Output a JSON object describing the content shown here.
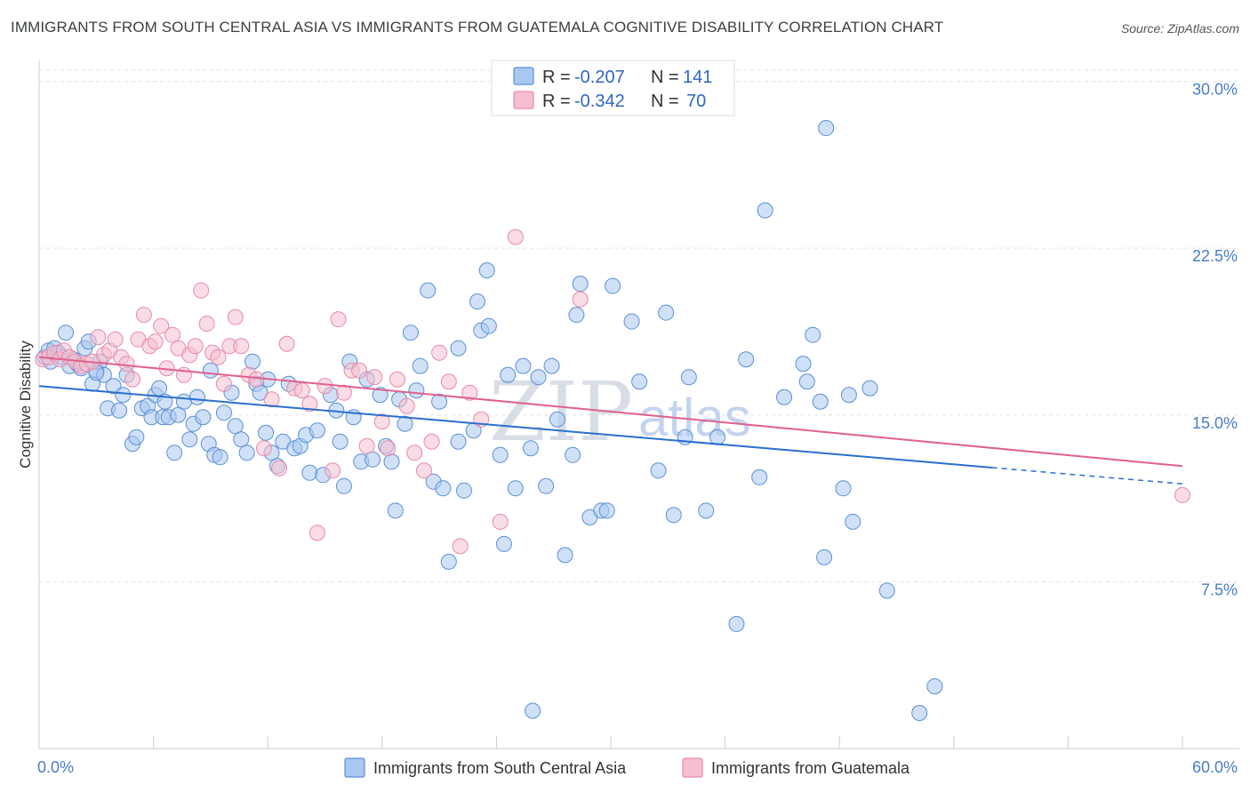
{
  "title": "IMMIGRANTS FROM SOUTH CENTRAL ASIA VS IMMIGRANTS FROM GUATEMALA COGNITIVE DISABILITY CORRELATION CHART",
  "source": "Source: ZipAtlas.com",
  "watermark": {
    "zip": "ZIP",
    "atlas": "atlas"
  },
  "colors": {
    "blue_fill": "#a9c8f0",
    "blue_stroke": "#5b8fd6",
    "blue_line": "#2a6fcf",
    "pink_fill": "#f6bfd0",
    "pink_stroke": "#e68aaa",
    "pink_line": "#e0608e",
    "axis_text": "#4a7cc9",
    "grid": "#e3e3e3"
  },
  "legend": {
    "r_label": "R =",
    "n_label": "N =",
    "series": [
      {
        "r": "-0.207",
        "n": "141"
      },
      {
        "r": "-0.342",
        "n": "70"
      }
    ]
  },
  "chart_data": {
    "type": "scatter",
    "title": "IMMIGRANTS FROM SOUTH CENTRAL ASIA VS IMMIGRANTS FROM GUATEMALA COGNITIVE DISABILITY CORRELATION CHART",
    "xlabel": "",
    "ylabel": "Cognitive Disability",
    "xlim": [
      0,
      60
    ],
    "ylim": [
      0,
      30.5
    ],
    "x_tick_labels": [
      "0.0%",
      "60.0%"
    ],
    "y_ticks": [
      7.5,
      15.0,
      22.5,
      30.0
    ],
    "y_tick_labels": [
      "7.5%",
      "15.0%",
      "22.5%",
      "30.0%"
    ],
    "series": [
      {
        "name": "Immigrants from South Central Asia",
        "r": -0.207,
        "n": 141,
        "trend": {
          "x0": 0,
          "y0": 16.3,
          "x1": 60,
          "y1": 11.9,
          "solid_until": 50
        },
        "points": [
          [
            0.3,
            17.6
          ],
          [
            0.5,
            17.9
          ],
          [
            0.6,
            17.4
          ],
          [
            0.8,
            18.0
          ],
          [
            1.0,
            17.8
          ],
          [
            1.2,
            17.6
          ],
          [
            1.4,
            18.7
          ],
          [
            1.6,
            17.2
          ],
          [
            1.8,
            17.5
          ],
          [
            2.0,
            17.3
          ],
          [
            2.2,
            17.1
          ],
          [
            2.4,
            18.0
          ],
          [
            2.6,
            18.3
          ],
          [
            2.8,
            16.4
          ],
          [
            3.0,
            17.0
          ],
          [
            3.2,
            17.4
          ],
          [
            3.4,
            16.8
          ],
          [
            3.6,
            15.3
          ],
          [
            3.9,
            16.3
          ],
          [
            4.2,
            15.2
          ],
          [
            4.4,
            15.9
          ],
          [
            4.6,
            16.8
          ],
          [
            4.9,
            13.7
          ],
          [
            5.1,
            14.0
          ],
          [
            5.4,
            15.3
          ],
          [
            5.7,
            15.4
          ],
          [
            5.9,
            14.9
          ],
          [
            6.1,
            15.9
          ],
          [
            6.3,
            16.2
          ],
          [
            6.5,
            14.9
          ],
          [
            6.8,
            14.9
          ],
          [
            7.1,
            13.3
          ],
          [
            7.3,
            15.0
          ],
          [
            7.6,
            15.6
          ],
          [
            7.9,
            13.9
          ],
          [
            8.1,
            14.6
          ],
          [
            8.3,
            15.8
          ],
          [
            8.6,
            14.9
          ],
          [
            8.9,
            13.7
          ],
          [
            9.2,
            13.2
          ],
          [
            9.5,
            13.1
          ],
          [
            9.7,
            15.1
          ],
          [
            10.1,
            16.0
          ],
          [
            10.3,
            14.5
          ],
          [
            10.6,
            13.9
          ],
          [
            10.9,
            13.3
          ],
          [
            11.2,
            17.4
          ],
          [
            11.4,
            16.4
          ],
          [
            11.6,
            16.0
          ],
          [
            11.9,
            14.2
          ],
          [
            12.2,
            13.3
          ],
          [
            12.5,
            12.7
          ],
          [
            12.8,
            13.8
          ],
          [
            13.1,
            16.4
          ],
          [
            13.4,
            13.5
          ],
          [
            13.7,
            13.6
          ],
          [
            14.0,
            14.1
          ],
          [
            14.2,
            12.4
          ],
          [
            14.6,
            14.3
          ],
          [
            14.9,
            12.3
          ],
          [
            15.3,
            15.9
          ],
          [
            15.6,
            15.2
          ],
          [
            15.8,
            13.8
          ],
          [
            16.0,
            11.8
          ],
          [
            16.3,
            17.4
          ],
          [
            16.5,
            14.9
          ],
          [
            16.9,
            12.9
          ],
          [
            17.2,
            16.6
          ],
          [
            17.5,
            13.0
          ],
          [
            17.9,
            15.9
          ],
          [
            18.2,
            13.6
          ],
          [
            18.5,
            12.9
          ],
          [
            18.7,
            10.7
          ],
          [
            18.9,
            15.7
          ],
          [
            19.2,
            14.6
          ],
          [
            19.5,
            18.7
          ],
          [
            19.8,
            16.1
          ],
          [
            20.0,
            17.2
          ],
          [
            20.4,
            20.6
          ],
          [
            20.7,
            12.0
          ],
          [
            21.0,
            15.6
          ],
          [
            21.2,
            11.7
          ],
          [
            21.5,
            8.4
          ],
          [
            22.0,
            13.8
          ],
          [
            22.3,
            11.6
          ],
          [
            22.8,
            14.3
          ],
          [
            23.0,
            20.1
          ],
          [
            23.2,
            18.8
          ],
          [
            23.5,
            21.5
          ],
          [
            23.6,
            19.0
          ],
          [
            24.2,
            13.2
          ],
          [
            24.4,
            9.2
          ],
          [
            24.6,
            16.8
          ],
          [
            25.0,
            11.7
          ],
          [
            25.4,
            17.2
          ],
          [
            25.8,
            13.5
          ],
          [
            26.2,
            16.7
          ],
          [
            26.6,
            11.8
          ],
          [
            26.9,
            17.2
          ],
          [
            27.2,
            14.8
          ],
          [
            27.6,
            8.7
          ],
          [
            28.0,
            13.2
          ],
          [
            28.2,
            19.5
          ],
          [
            28.4,
            20.9
          ],
          [
            28.9,
            10.4
          ],
          [
            29.5,
            10.7
          ],
          [
            29.8,
            10.7
          ],
          [
            30.1,
            20.8
          ],
          [
            31.1,
            19.2
          ],
          [
            31.5,
            16.5
          ],
          [
            32.5,
            12.5
          ],
          [
            32.9,
            19.6
          ],
          [
            33.3,
            10.5
          ],
          [
            33.9,
            14.0
          ],
          [
            34.1,
            16.7
          ],
          [
            35.6,
            14.0
          ],
          [
            36.6,
            5.6
          ],
          [
            37.1,
            17.5
          ],
          [
            37.8,
            12.2
          ],
          [
            38.1,
            24.2
          ],
          [
            39.1,
            15.8
          ],
          [
            40.1,
            17.3
          ],
          [
            40.3,
            16.5
          ],
          [
            40.6,
            18.6
          ],
          [
            41.0,
            15.6
          ],
          [
            41.2,
            8.6
          ],
          [
            41.3,
            27.9
          ],
          [
            42.2,
            11.7
          ],
          [
            42.5,
            15.9
          ],
          [
            42.7,
            10.2
          ],
          [
            43.6,
            16.2
          ],
          [
            44.5,
            7.1
          ],
          [
            46.2,
            1.6
          ],
          [
            47.0,
            2.8
          ],
          [
            25.9,
            1.7
          ],
          [
            35.0,
            10.7
          ],
          [
            22.0,
            18.0
          ],
          [
            12.0,
            16.6
          ],
          [
            9.0,
            17.0
          ],
          [
            6.6,
            15.6
          ],
          [
            3.0,
            16.9
          ]
        ]
      },
      {
        "name": "Immigrants from Guatemala",
        "r": -0.342,
        "n": 70,
        "trend": {
          "x0": 0,
          "y0": 17.6,
          "x1": 60,
          "y1": 12.7
        },
        "points": [
          [
            0.2,
            17.5
          ],
          [
            0.5,
            17.6
          ],
          [
            0.8,
            17.8
          ],
          [
            1.1,
            17.5
          ],
          [
            1.3,
            17.9
          ],
          [
            1.6,
            17.6
          ],
          [
            1.9,
            17.4
          ],
          [
            2.2,
            17.2
          ],
          [
            2.5,
            17.3
          ],
          [
            2.8,
            17.4
          ],
          [
            3.1,
            18.5
          ],
          [
            3.4,
            17.7
          ],
          [
            3.7,
            17.9
          ],
          [
            4.0,
            18.4
          ],
          [
            4.3,
            17.6
          ],
          [
            4.6,
            17.3
          ],
          [
            4.9,
            16.6
          ],
          [
            5.2,
            18.4
          ],
          [
            5.5,
            19.5
          ],
          [
            5.8,
            18.1
          ],
          [
            6.1,
            18.3
          ],
          [
            6.4,
            19.0
          ],
          [
            6.7,
            17.1
          ],
          [
            7.0,
            18.6
          ],
          [
            7.3,
            18.0
          ],
          [
            7.6,
            16.8
          ],
          [
            7.9,
            17.7
          ],
          [
            8.2,
            18.1
          ],
          [
            8.5,
            20.6
          ],
          [
            8.8,
            19.1
          ],
          [
            9.1,
            17.8
          ],
          [
            9.4,
            17.6
          ],
          [
            9.7,
            16.4
          ],
          [
            10.0,
            18.1
          ],
          [
            10.3,
            19.4
          ],
          [
            10.6,
            18.1
          ],
          [
            11.0,
            16.8
          ],
          [
            11.4,
            16.6
          ],
          [
            11.8,
            13.5
          ],
          [
            12.2,
            15.7
          ],
          [
            12.6,
            12.6
          ],
          [
            13.0,
            18.2
          ],
          [
            13.4,
            16.2
          ],
          [
            13.8,
            16.1
          ],
          [
            14.2,
            15.5
          ],
          [
            14.6,
            9.7
          ],
          [
            15.0,
            16.3
          ],
          [
            15.4,
            12.5
          ],
          [
            15.7,
            19.3
          ],
          [
            16.0,
            16.0
          ],
          [
            16.4,
            17.0
          ],
          [
            16.8,
            17.0
          ],
          [
            17.2,
            13.6
          ],
          [
            17.6,
            16.7
          ],
          [
            18.0,
            14.7
          ],
          [
            18.3,
            13.5
          ],
          [
            18.8,
            16.6
          ],
          [
            19.3,
            15.4
          ],
          [
            19.7,
            13.3
          ],
          [
            20.2,
            12.5
          ],
          [
            20.6,
            13.8
          ],
          [
            21.0,
            17.8
          ],
          [
            21.5,
            16.5
          ],
          [
            22.1,
            9.1
          ],
          [
            22.6,
            16.0
          ],
          [
            23.2,
            14.8
          ],
          [
            24.2,
            10.2
          ],
          [
            25.0,
            23.0
          ],
          [
            28.4,
            20.2
          ],
          [
            60.0,
            11.4
          ]
        ]
      }
    ]
  },
  "bottom_legend": [
    "Immigrants from South Central Asia",
    "Immigrants from Guatemala"
  ]
}
